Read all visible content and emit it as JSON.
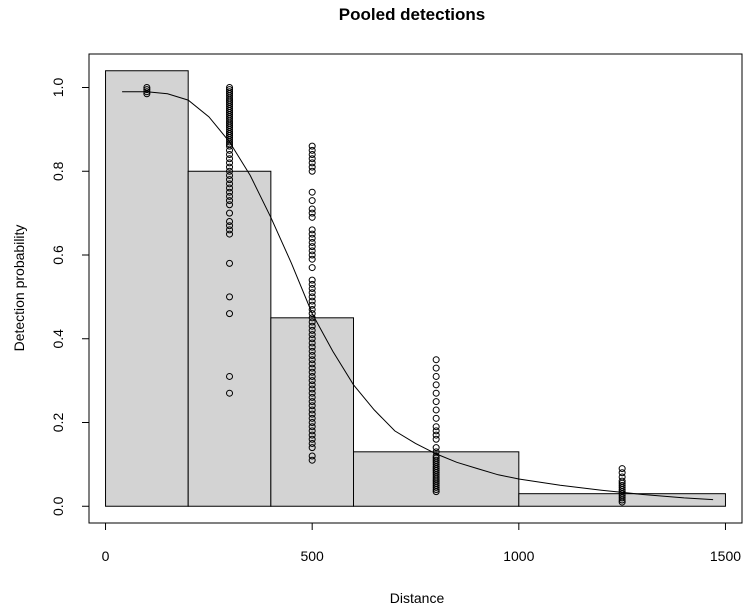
{
  "chart_data": {
    "type": "bar",
    "title": "Pooled detections",
    "xlabel": "Distance",
    "ylabel": "Detection probability",
    "xlim": [
      -40,
      1540
    ],
    "ylim": [
      -0.04,
      1.08
    ],
    "xticks": [
      0,
      500,
      1000,
      1500
    ],
    "xtick_labels": [
      "0",
      "500",
      "1000",
      "1500"
    ],
    "yticks": [
      0,
      0.2,
      0.4,
      0.6,
      0.8,
      1
    ],
    "ytick_labels": [
      "0.0",
      "0.2",
      "0.4",
      "0.6",
      "0.8",
      "1.0"
    ],
    "grid": false,
    "colors": {
      "bar_fill": "#d3d3d3",
      "stroke": "#000000"
    },
    "bars": [
      {
        "x0": 0,
        "x1": 200,
        "value": 1.04
      },
      {
        "x0": 200,
        "x1": 400,
        "value": 0.8
      },
      {
        "x0": 400,
        "x1": 600,
        "value": 0.45
      },
      {
        "x0": 600,
        "x1": 1000,
        "value": 0.13
      },
      {
        "x0": 1000,
        "x1": 1500,
        "value": 0.03
      }
    ],
    "points": [
      {
        "x": 100,
        "y": [
          0.985,
          0.99,
          0.995,
          1.0
        ]
      },
      {
        "x": 300,
        "y": [
          1.0,
          0.995,
          0.99,
          0.985,
          0.98,
          0.975,
          0.97,
          0.965,
          0.96,
          0.955,
          0.95,
          0.945,
          0.94,
          0.935,
          0.93,
          0.925,
          0.92,
          0.915,
          0.91,
          0.905,
          0.9,
          0.895,
          0.89,
          0.885,
          0.88,
          0.875,
          0.87,
          0.865,
          0.86,
          0.85,
          0.84,
          0.83,
          0.82,
          0.81,
          0.8,
          0.79,
          0.78,
          0.77,
          0.76,
          0.75,
          0.74,
          0.73,
          0.72,
          0.7,
          0.68,
          0.67,
          0.66,
          0.65,
          0.58,
          0.5,
          0.46,
          0.31,
          0.27
        ]
      },
      {
        "x": 500,
        "y": [
          0.86,
          0.85,
          0.84,
          0.83,
          0.82,
          0.81,
          0.8,
          0.75,
          0.73,
          0.71,
          0.7,
          0.69,
          0.66,
          0.65,
          0.64,
          0.63,
          0.62,
          0.61,
          0.6,
          0.59,
          0.57,
          0.54,
          0.53,
          0.52,
          0.51,
          0.5,
          0.49,
          0.48,
          0.47,
          0.46,
          0.45,
          0.44,
          0.43,
          0.42,
          0.41,
          0.4,
          0.39,
          0.38,
          0.37,
          0.36,
          0.35,
          0.34,
          0.33,
          0.32,
          0.31,
          0.3,
          0.29,
          0.28,
          0.27,
          0.26,
          0.25,
          0.24,
          0.23,
          0.22,
          0.21,
          0.2,
          0.19,
          0.18,
          0.17,
          0.16,
          0.15,
          0.14,
          0.12,
          0.11
        ]
      },
      {
        "x": 800,
        "y": [
          0.35,
          0.33,
          0.31,
          0.29,
          0.27,
          0.25,
          0.23,
          0.21,
          0.19,
          0.18,
          0.17,
          0.16,
          0.14,
          0.13,
          0.12,
          0.115,
          0.11,
          0.105,
          0.1,
          0.095,
          0.09,
          0.085,
          0.08,
          0.075,
          0.07,
          0.065,
          0.06,
          0.055,
          0.05,
          0.045,
          0.04,
          0.035
        ]
      },
      {
        "x": 1250,
        "y": [
          0.09,
          0.08,
          0.07,
          0.06,
          0.055,
          0.05,
          0.045,
          0.04,
          0.035,
          0.03,
          0.025,
          0.02,
          0.015,
          0.01
        ]
      }
    ],
    "curve": {
      "x": [
        40,
        100,
        150,
        200,
        250,
        300,
        350,
        400,
        450,
        500,
        550,
        600,
        650,
        700,
        750,
        800,
        850,
        900,
        950,
        1000,
        1100,
        1200,
        1300,
        1400,
        1470
      ],
      "y": [
        0.99,
        0.99,
        0.985,
        0.97,
        0.93,
        0.87,
        0.79,
        0.69,
        0.58,
        0.46,
        0.37,
        0.29,
        0.23,
        0.18,
        0.15,
        0.125,
        0.105,
        0.09,
        0.075,
        0.065,
        0.05,
        0.038,
        0.028,
        0.02,
        0.016
      ]
    }
  }
}
